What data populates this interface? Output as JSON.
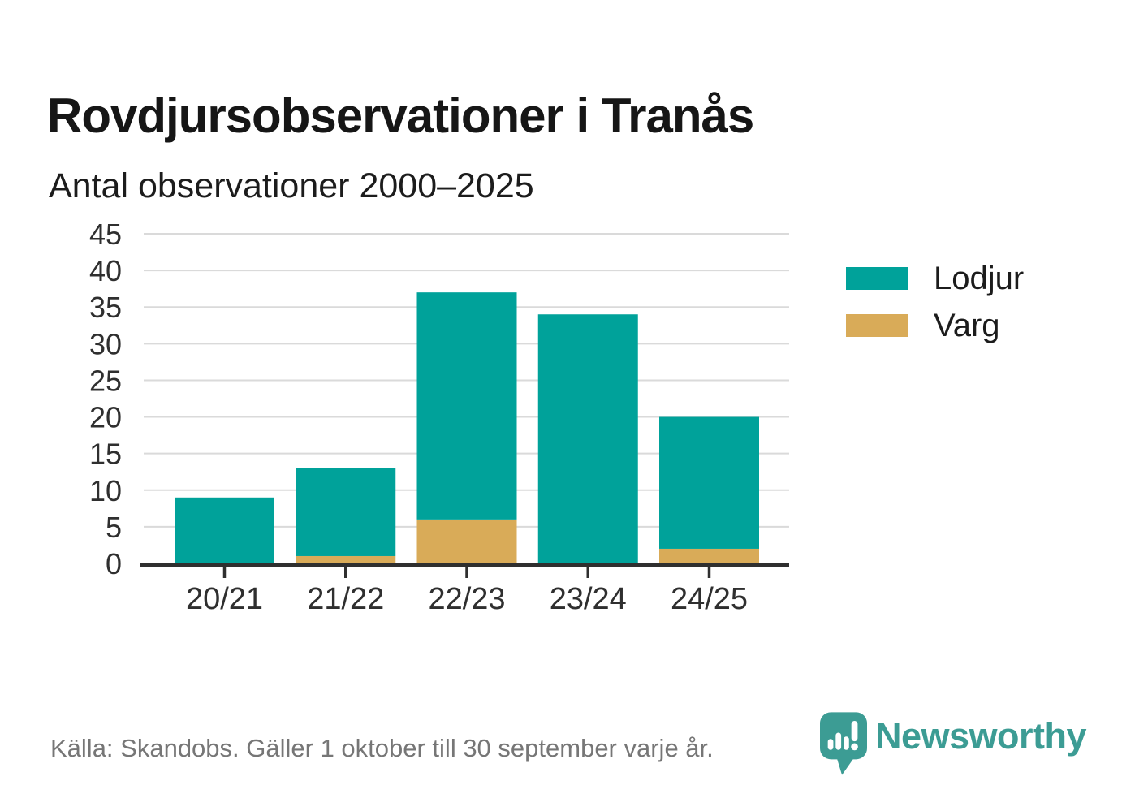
{
  "title": "Rovdjursobservationer i Tranås",
  "subtitle": "Antal observationer 2000–2025",
  "legend": {
    "items": [
      {
        "label": "Lodjur",
        "color": "#00a29a"
      },
      {
        "label": "Varg",
        "color": "#d9ab58"
      }
    ]
  },
  "footer": {
    "source": "Källa: Skandobs. Gäller 1 oktober till 30 september varje år.",
    "brand": "Newsworthy",
    "brand_color": "#3c9c94",
    "logo_icon": "bar-chart-speech-bubble-icon"
  },
  "chart_data": {
    "type": "bar",
    "stacked": true,
    "categories": [
      "20/21",
      "21/22",
      "22/23",
      "23/24",
      "24/25"
    ],
    "series": [
      {
        "name": "Lodjur",
        "color": "#00a29a",
        "values": [
          9,
          12,
          31,
          34,
          18
        ]
      },
      {
        "name": "Varg",
        "color": "#d9ab58",
        "values": [
          0,
          1,
          6,
          0,
          2
        ]
      }
    ],
    "stack_order_bottom_to_top": [
      "Varg",
      "Lodjur"
    ],
    "totals": [
      9,
      13,
      37,
      34,
      20
    ],
    "xlabel": "",
    "ylabel": "",
    "ylim": [
      0,
      45
    ],
    "ytick_step": 5,
    "grid": true,
    "gridline_color": "#dadada",
    "axis_color": "#2f2f2f",
    "tick_label_color": "#2f2f2f",
    "legend_position": "right"
  }
}
